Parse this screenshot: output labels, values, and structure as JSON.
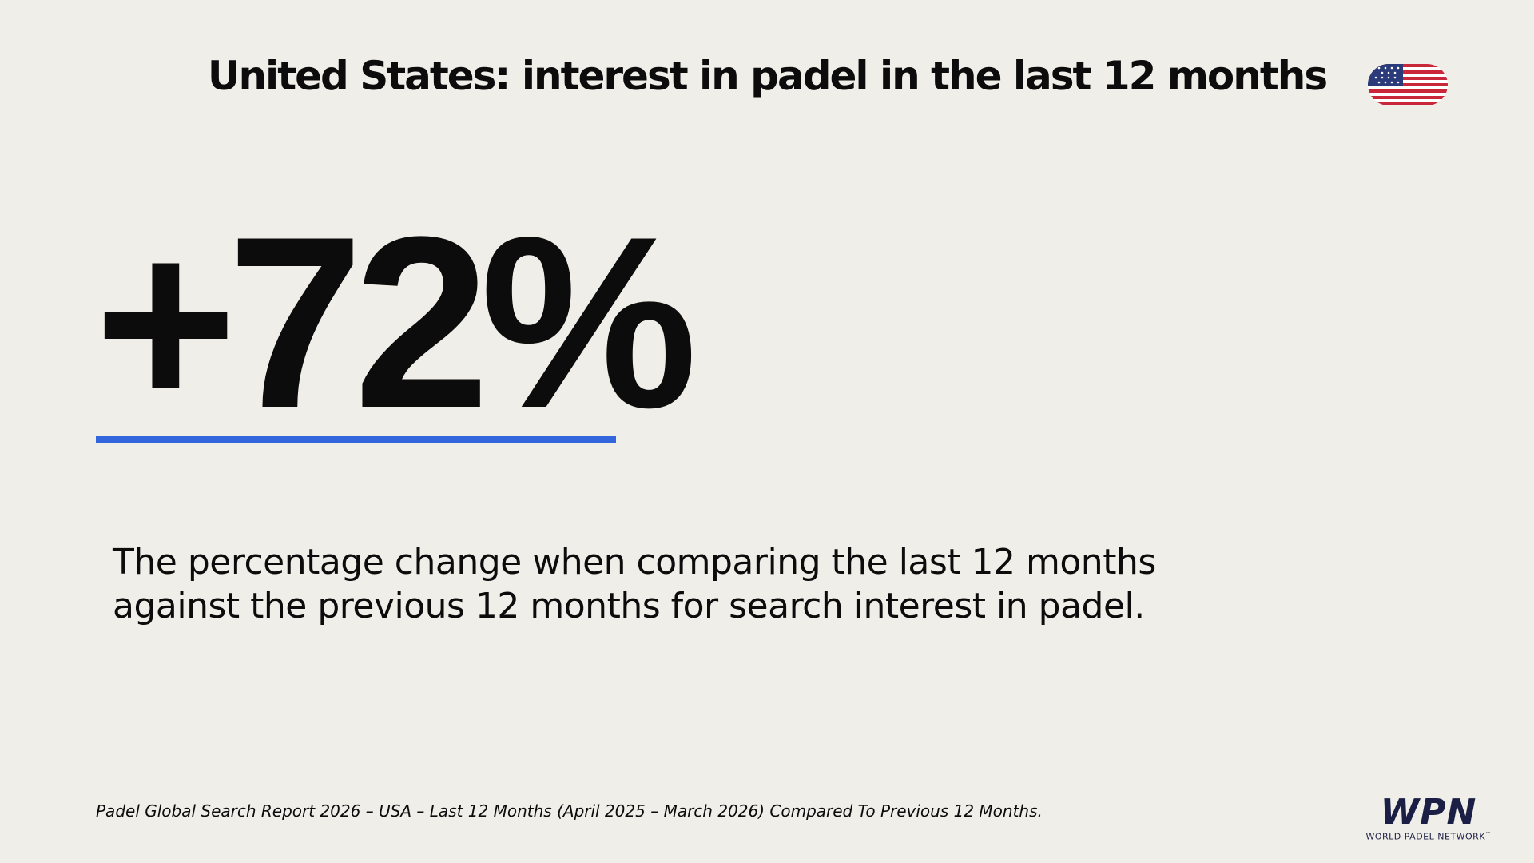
{
  "header": {
    "title": "United States: interest in padel in the last 12 months"
  },
  "stat": {
    "value": "+72%"
  },
  "description": {
    "lines": [
      "The percentage change when comparing the last 12 months",
      "against the previous 12 months for search interest in padel."
    ]
  },
  "footer": {
    "source": "Padel Global Search Report 2026 – USA – Last 12 Months (April 2025 – March 2026) Compared To Previous 12 Months.",
    "logo": {
      "mark": "WPN",
      "name": "WORLD PADEL NETWORK",
      "trademark": "™"
    }
  }
}
